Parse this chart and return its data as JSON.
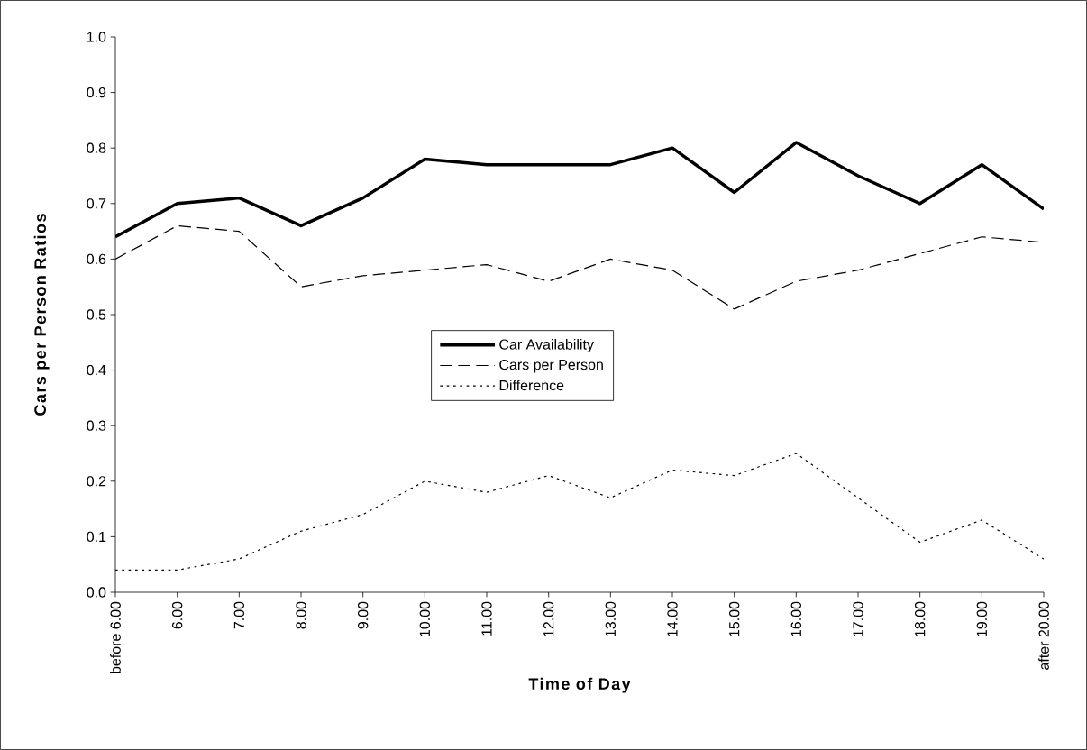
{
  "chart_data": {
    "type": "line",
    "xlabel": "Time of Day",
    "ylabel": "Cars per Person Ratios",
    "categories": [
      "before 6.00",
      "6.00",
      "7.00",
      "8.00",
      "9.00",
      "10.00",
      "11.00",
      "12.00",
      "13.00",
      "14.00",
      "15.00",
      "16.00",
      "17.00",
      "18.00",
      "19.00",
      "after 20.00"
    ],
    "series": [
      {
        "name": "Car Availability",
        "color": "#000000",
        "line_style": "solid",
        "values": [
          0.64,
          0.7,
          0.71,
          0.66,
          0.71,
          0.78,
          0.77,
          0.77,
          0.77,
          0.8,
          0.72,
          0.81,
          0.75,
          0.7,
          0.77,
          0.69
        ]
      },
      {
        "name": "Cars per Person",
        "color": "#000000",
        "line_style": "dashed",
        "values": [
          0.6,
          0.66,
          0.65,
          0.55,
          0.57,
          0.58,
          0.59,
          0.56,
          0.6,
          0.58,
          0.51,
          0.56,
          0.58,
          0.61,
          0.64,
          0.63
        ]
      },
      {
        "name": "Difference",
        "color": "#000000",
        "line_style": "dotted",
        "values": [
          0.04,
          0.04,
          0.06,
          0.11,
          0.14,
          0.2,
          0.18,
          0.21,
          0.17,
          0.22,
          0.21,
          0.25,
          0.17,
          0.09,
          0.13,
          0.06
        ]
      }
    ],
    "ylim": [
      0,
      1
    ],
    "yticks": [
      {
        "value": 0,
        "label": "0.0"
      },
      0.1,
      0.2,
      0.3,
      0.4,
      0.5,
      0.6,
      0.7,
      0.8,
      0.9,
      {
        "value": 1,
        "label": "1.0"
      }
    ],
    "legend": "center",
    "marker": "none"
  }
}
